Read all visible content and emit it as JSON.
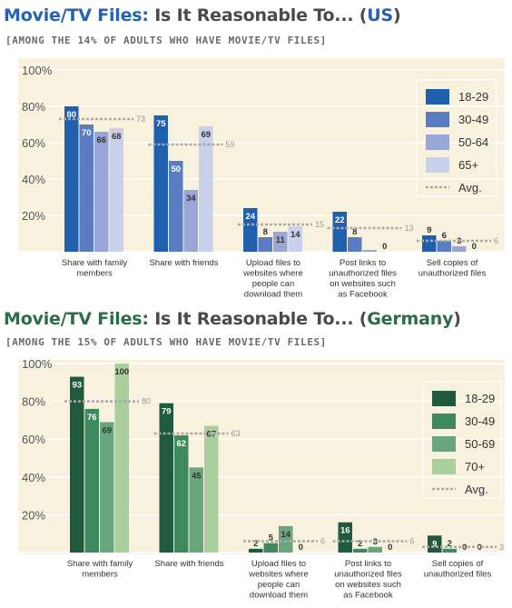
{
  "colors": {
    "us_title": "#2563b0",
    "de_title": "#2e6b47",
    "title_dark": "#4a4a4a",
    "us_bg": "#f8f1de",
    "de_bg": "#f8f1de",
    "avg_line": "#a9a9a9",
    "us_series": [
      "#1f5fae",
      "#5a7cc2",
      "#9aa6d8",
      "#c9d0ec"
    ],
    "de_series": [
      "#1f5a3c",
      "#3e8a5e",
      "#6aa67d",
      "#a8cf9c"
    ]
  },
  "chart_data": [
    {
      "id": "us",
      "type": "bar",
      "title_prefix": "Movie/TV Files: ",
      "title_main": "Is It Reasonable To... (",
      "title_country": "US",
      "title_suffix": ")",
      "subtitle": "[AMONG THE 14% OF ADULTS WHO HAVE MOVIE/TV FILES]",
      "ylim": [
        0,
        100
      ],
      "yticks": [
        20,
        40,
        60,
        80,
        100
      ],
      "ytick_labels": [
        "20%",
        "40%",
        "60%",
        "80%",
        "100%"
      ],
      "categories": [
        [
          "Share with family",
          "members"
        ],
        [
          "Share with friends"
        ],
        [
          "Upload files to",
          "websites where",
          "people can",
          "download them"
        ],
        [
          "Post links to",
          "unauthorized files",
          "on websites such",
          "as Facebook"
        ],
        [
          "Sell copies of",
          "unauthorized files"
        ]
      ],
      "series": [
        {
          "name": "18-29",
          "values": [
            80,
            75,
            24,
            22,
            9
          ]
        },
        {
          "name": "30-49",
          "values": [
            70,
            50,
            8,
            8,
            6
          ]
        },
        {
          "name": "50-64",
          "values": [
            66,
            34,
            11,
            1,
            3
          ]
        },
        {
          "name": "65+",
          "values": [
            68,
            69,
            14,
            0,
            0
          ]
        }
      ],
      "value_labels": [
        [
          "80",
          "75",
          "24",
          "22",
          "9"
        ],
        [
          "70",
          "50",
          "8",
          "8",
          "6"
        ],
        [
          "66",
          "34",
          "11",
          "",
          "3"
        ],
        [
          "68",
          "69",
          "14",
          "0",
          "0"
        ]
      ],
      "avg": [
        73,
        59,
        15,
        13,
        6
      ],
      "avg_label": "Avg.",
      "grid": true,
      "legend_position": "top-right"
    },
    {
      "id": "de",
      "type": "bar",
      "title_prefix": "Movie/TV Files: ",
      "title_main": "Is It Reasonable To... (",
      "title_country": "Germany",
      "title_suffix": ")",
      "subtitle": "[AMONG THE 15% OF ADULTS WHO HAVE MOVIE/TV FILES]",
      "ylim": [
        0,
        100
      ],
      "yticks": [
        20,
        40,
        60,
        80,
        100
      ],
      "ytick_labels": [
        "20%",
        "40%",
        "60%",
        "80%",
        "100%"
      ],
      "categories": [
        [
          "Share with family",
          "members"
        ],
        [
          "Share with friends"
        ],
        [
          "Upload files to",
          "websites where",
          "people can",
          "download them"
        ],
        [
          "Post links to",
          "unauthorized files",
          "on websites such",
          "as Facebook"
        ],
        [
          "Sell copies of",
          "unauthorized files"
        ]
      ],
      "series": [
        {
          "name": "18-29",
          "values": [
            93,
            79,
            2,
            16,
            9
          ]
        },
        {
          "name": "30-49",
          "values": [
            76,
            62,
            5,
            2,
            2
          ]
        },
        {
          "name": "50-69",
          "values": [
            69,
            45,
            14,
            3,
            0
          ]
        },
        {
          "name": "70+",
          "values": [
            100,
            67,
            0,
            0,
            0
          ]
        }
      ],
      "value_labels": [
        [
          "93",
          "79",
          "2",
          "16",
          "9"
        ],
        [
          "76",
          "62",
          "5",
          "2",
          "2"
        ],
        [
          "69",
          "45",
          "14",
          "3",
          "0"
        ],
        [
          "100",
          "67",
          "0",
          "0",
          "0"
        ]
      ],
      "avg": [
        80,
        63,
        6,
        6,
        3
      ],
      "avg_label": "Avg.",
      "grid": true,
      "legend_position": "top-right"
    }
  ]
}
